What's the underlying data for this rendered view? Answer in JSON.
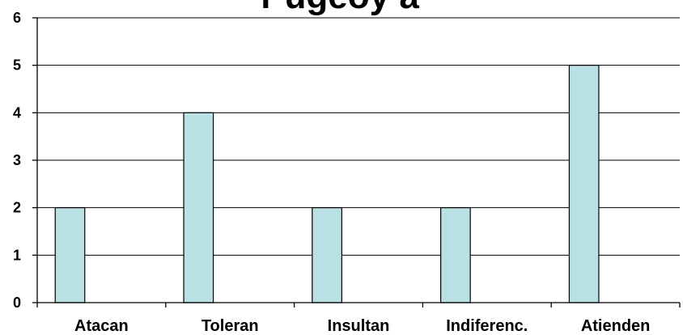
{
  "chart_data": {
    "type": "bar",
    "title": "r ugeoy a",
    "categories": [
      "Atacan",
      "Toleran",
      "Insultan",
      "Indiferenc.",
      "Atienden"
    ],
    "values": [
      2,
      4,
      2,
      2,
      5
    ],
    "ylim": [
      0,
      6
    ],
    "yticks": [
      0,
      1,
      2,
      3,
      4,
      5,
      6
    ],
    "grid": true,
    "colors": {
      "bar_fill": "#b9e0e3",
      "bar_stroke": "#000000",
      "grid": "#000000"
    }
  }
}
